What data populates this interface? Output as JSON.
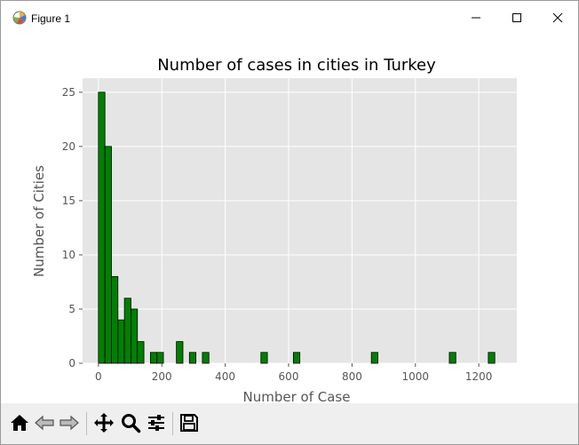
{
  "window": {
    "title": "Figure 1",
    "icons": [
      "matplotlib-app-icon",
      "minimize-icon",
      "maximize-icon",
      "close-icon"
    ]
  },
  "toolbar": {
    "icons": [
      "home-icon",
      "back-arrow-icon",
      "forward-arrow-icon",
      "pan-move-icon",
      "zoom-magnifier-icon",
      "configure-subplots-icon",
      "save-floppy-icon"
    ]
  },
  "chart_data": {
    "type": "bar",
    "title": "Number of cases in cities in Turkey",
    "xlabel": "Number of Case",
    "ylabel": "Number of Cities",
    "xlim": [
      -50,
      1320
    ],
    "ylim": [
      0,
      26.3
    ],
    "x_ticks": [
      0,
      200,
      400,
      600,
      800,
      1000,
      1200
    ],
    "y_ticks": [
      0,
      5,
      10,
      15,
      20,
      25
    ],
    "bin_width": 20.5,
    "bins": [
      {
        "start": 0,
        "value": 25
      },
      {
        "start": 20.5,
        "value": 20
      },
      {
        "start": 41,
        "value": 8
      },
      {
        "start": 61.5,
        "value": 4
      },
      {
        "start": 82,
        "value": 6
      },
      {
        "start": 102.5,
        "value": 5
      },
      {
        "start": 123,
        "value": 2
      },
      {
        "start": 164,
        "value": 1
      },
      {
        "start": 184.5,
        "value": 1
      },
      {
        "start": 246,
        "value": 2
      },
      {
        "start": 287,
        "value": 1
      },
      {
        "start": 328,
        "value": 1
      },
      {
        "start": 512.5,
        "value": 1
      },
      {
        "start": 615,
        "value": 1
      },
      {
        "start": 861,
        "value": 1
      },
      {
        "start": 1107,
        "value": 1
      },
      {
        "start": 1230,
        "value": 1
      }
    ],
    "bar_color": "#008000",
    "edge_color": "#000000",
    "background_color": "#e5e5e5",
    "grid": true,
    "legend": "none"
  }
}
